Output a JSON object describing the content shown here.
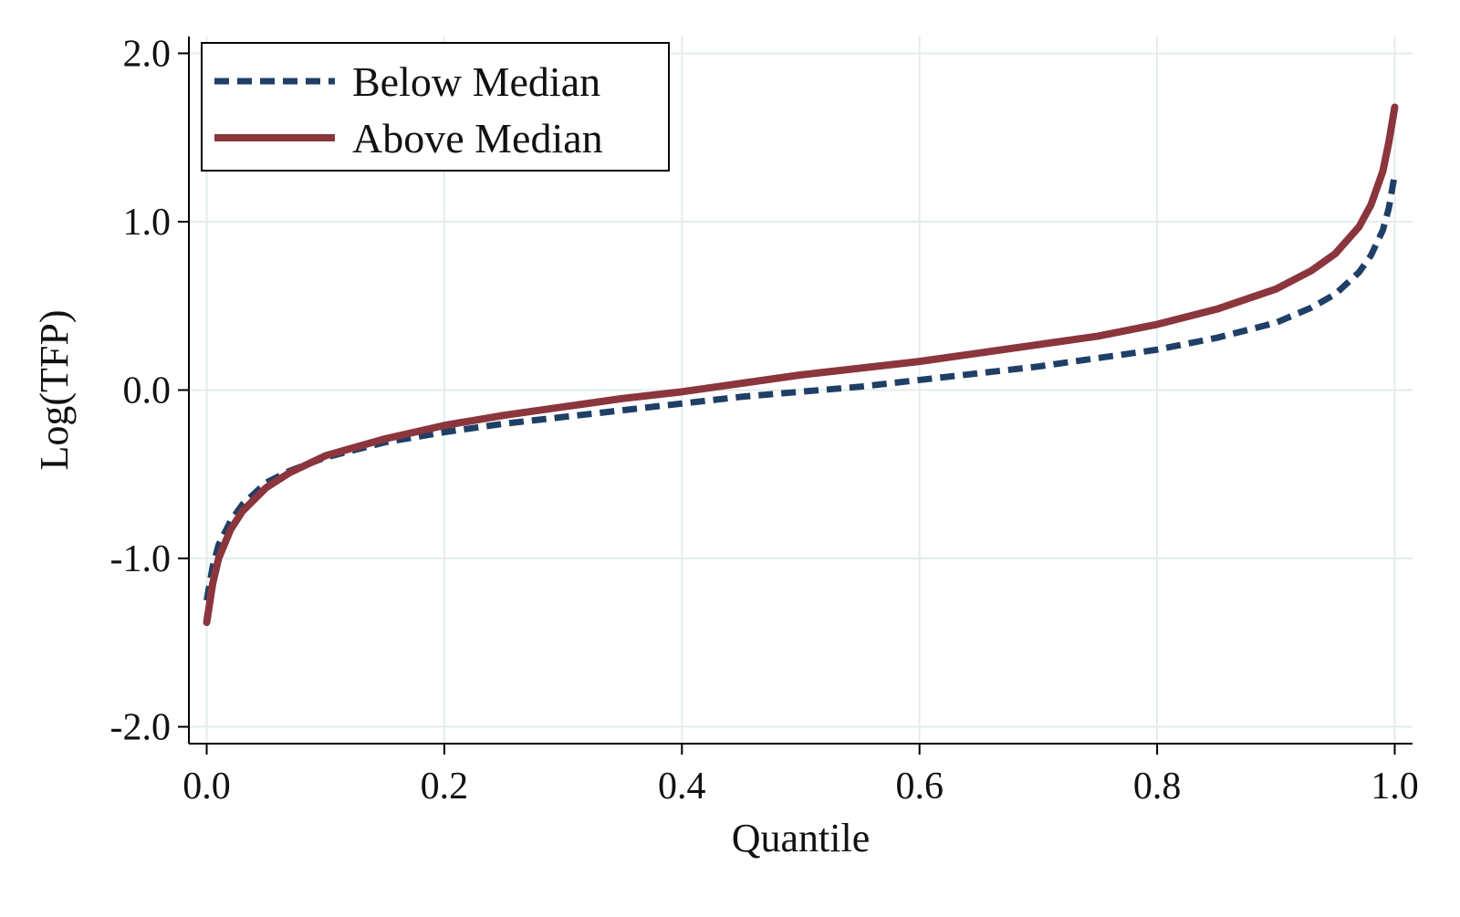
{
  "chart_data": {
    "type": "line",
    "title": "",
    "xlabel": "Quantile",
    "ylabel": "Log(TFP)",
    "xlim": [
      0,
      1
    ],
    "ylim": [
      -2.1,
      2.1
    ],
    "x_ticks": [
      0.0,
      0.2,
      0.4,
      0.6,
      0.8,
      1.0
    ],
    "x_tick_labels": [
      "0.0",
      "0.2",
      "0.4",
      "0.6",
      "0.8",
      "1.0"
    ],
    "y_ticks": [
      -2.0,
      -1.0,
      0.0,
      1.0,
      2.0
    ],
    "y_tick_labels": [
      "-2.0",
      "-1.0",
      "0.0",
      "1.0",
      "2.0"
    ],
    "grid": true,
    "legend_position": "top-left",
    "series": [
      {
        "name": "Below Median",
        "color": "#1f3f66",
        "style": "dashed",
        "x": [
          0.0,
          0.005,
          0.01,
          0.02,
          0.03,
          0.05,
          0.07,
          0.1,
          0.15,
          0.2,
          0.25,
          0.3,
          0.35,
          0.4,
          0.45,
          0.5,
          0.55,
          0.6,
          0.65,
          0.7,
          0.75,
          0.8,
          0.85,
          0.9,
          0.93,
          0.95,
          0.97,
          0.98,
          0.99,
          0.995,
          1.0
        ],
        "y": [
          -1.25,
          -1.05,
          -0.92,
          -0.78,
          -0.68,
          -0.55,
          -0.48,
          -0.4,
          -0.31,
          -0.25,
          -0.2,
          -0.16,
          -0.12,
          -0.08,
          -0.04,
          -0.01,
          0.02,
          0.06,
          0.1,
          0.14,
          0.19,
          0.24,
          0.31,
          0.4,
          0.49,
          0.57,
          0.7,
          0.8,
          0.95,
          1.08,
          1.28
        ]
      },
      {
        "name": "Above Median",
        "color": "#8b353d",
        "style": "solid",
        "x": [
          0.0,
          0.005,
          0.01,
          0.02,
          0.03,
          0.05,
          0.07,
          0.1,
          0.15,
          0.2,
          0.25,
          0.3,
          0.35,
          0.4,
          0.45,
          0.5,
          0.55,
          0.6,
          0.65,
          0.7,
          0.75,
          0.8,
          0.85,
          0.9,
          0.93,
          0.95,
          0.97,
          0.98,
          0.99,
          0.995,
          1.0
        ],
        "y": [
          -1.38,
          -1.15,
          -1.0,
          -0.83,
          -0.72,
          -0.58,
          -0.49,
          -0.39,
          -0.29,
          -0.21,
          -0.15,
          -0.1,
          -0.05,
          -0.01,
          0.04,
          0.09,
          0.13,
          0.17,
          0.22,
          0.27,
          0.32,
          0.39,
          0.48,
          0.6,
          0.71,
          0.81,
          0.97,
          1.1,
          1.3,
          1.47,
          1.68
        ]
      }
    ]
  }
}
